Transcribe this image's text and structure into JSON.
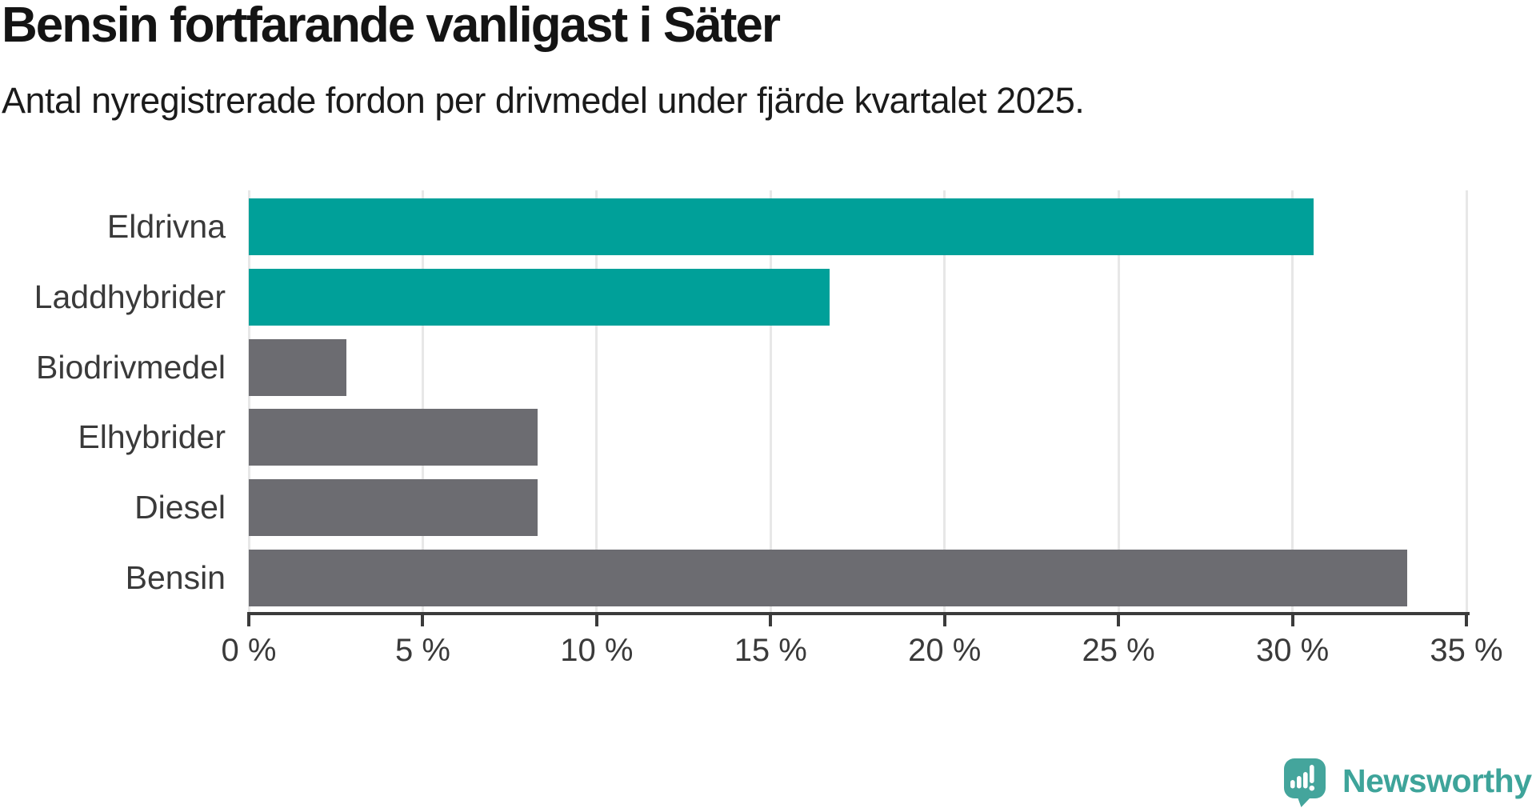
{
  "header": {
    "title": "Bensin fortfarande vanligast i Säter",
    "subtitle": "Antal nyregistrerade fordon per drivmedel under fjärde kvartalet 2025."
  },
  "chart_data": {
    "type": "bar",
    "orientation": "horizontal",
    "title": "Bensin fortfarande vanligast i Säter",
    "subtitle": "Antal nyregistrerade fordon per drivmedel under fjärde kvartalet 2025.",
    "categories": [
      "Eldrivna",
      "Laddhybrider",
      "Biodrivmedel",
      "Elhybrider",
      "Diesel",
      "Bensin"
    ],
    "values": [
      30.6,
      16.7,
      2.8,
      8.3,
      8.3,
      33.3
    ],
    "unit": "%",
    "bar_colors": [
      "#00a099",
      "#00a099",
      "#6c6c71",
      "#6c6c71",
      "#6c6c71",
      "#6c6c71"
    ],
    "xlabel": "",
    "ylabel": "",
    "xlim": [
      0,
      35
    ],
    "x_ticks": [
      0,
      5,
      10,
      15,
      20,
      25,
      30,
      35
    ],
    "x_tick_labels": [
      "0 %",
      "5 %",
      "10 %",
      "15 %",
      "20 %",
      "25 %",
      "30 %",
      "35 %"
    ],
    "grid": true,
    "legend": false
  },
  "branding": {
    "logo_text": "Newsworthy",
    "logo_color": "#3ea49a",
    "icon": "newsworthy-speech-bubble-bar-chart-icon"
  },
  "colors": {
    "highlight": "#00a099",
    "neutral": "#6c6c71",
    "grid": "#e7e7e7",
    "axis": "#3b3b3b",
    "title_text": "#141414",
    "label_text": "#3a3a3a",
    "background": "#ffffff"
  }
}
